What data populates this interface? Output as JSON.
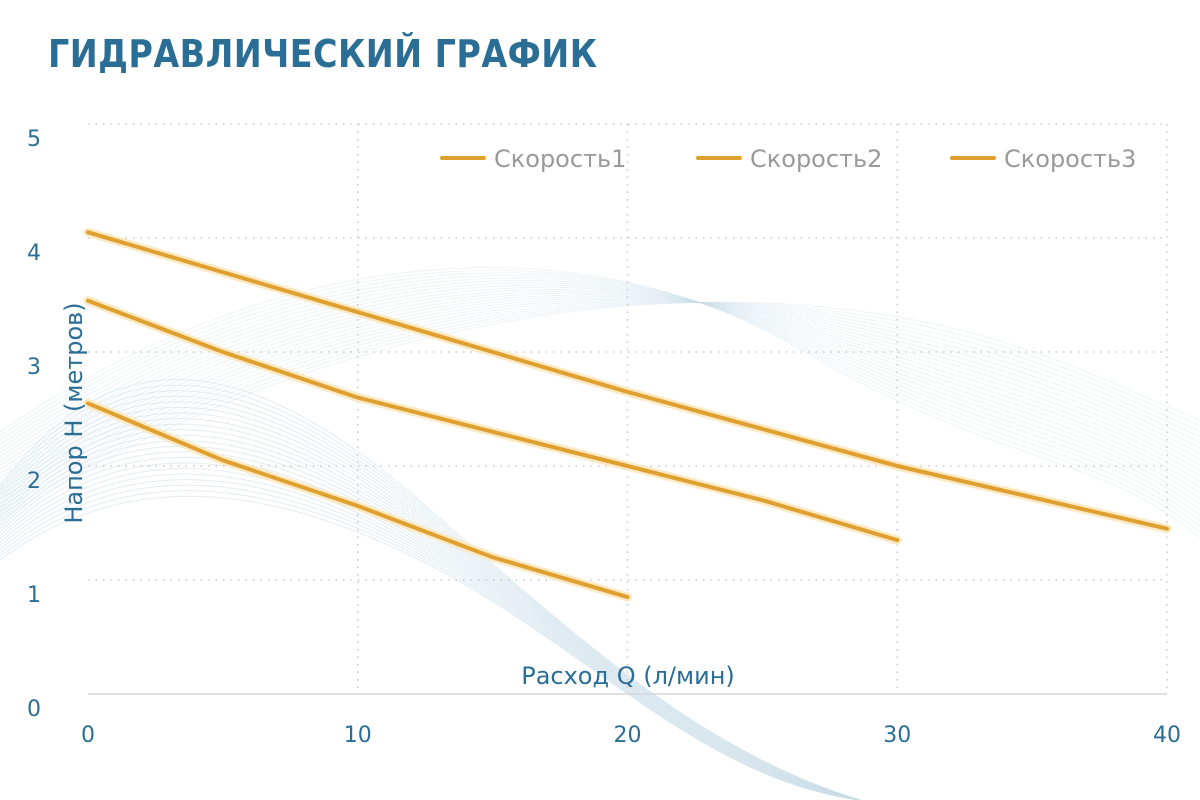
{
  "chart_data": {
    "type": "line",
    "title": "ГИДРАВЛИЧЕСКИЙ ГРАФИК",
    "xlabel": "Расход Q (л/мин)",
    "ylabel": "Напор H (метров)",
    "xlim": [
      0,
      40
    ],
    "ylim": [
      0,
      5
    ],
    "xticks": [
      "0",
      "10",
      "20",
      "30",
      "40"
    ],
    "yticks": [
      "0",
      "1",
      "2",
      "3",
      "4",
      "5"
    ],
    "grid": true,
    "legend_position": "top-right",
    "series": [
      {
        "name": "Скорость1",
        "x": [
          0,
          10,
          20,
          30,
          40
        ],
        "y": [
          4.05,
          3.35,
          2.65,
          2.0,
          1.45
        ]
      },
      {
        "name": "Скорость2",
        "x": [
          0,
          5,
          10,
          15,
          20,
          25,
          30
        ],
        "y": [
          3.45,
          3.0,
          2.6,
          2.3,
          2.0,
          1.7,
          1.35
        ]
      },
      {
        "name": "Скорость3",
        "x": [
          0,
          5,
          10,
          15,
          20
        ],
        "y": [
          2.55,
          2.05,
          1.65,
          1.2,
          0.85
        ]
      }
    ]
  },
  "colors": {
    "title": "#2a6e96",
    "axis_text": "#2a6e96",
    "line": "#e0a030",
    "line_glow": "#fbe9c4",
    "grid": "#c8c8c8",
    "legend_text": "#9a9a9a",
    "wave": "#c9dce8"
  }
}
